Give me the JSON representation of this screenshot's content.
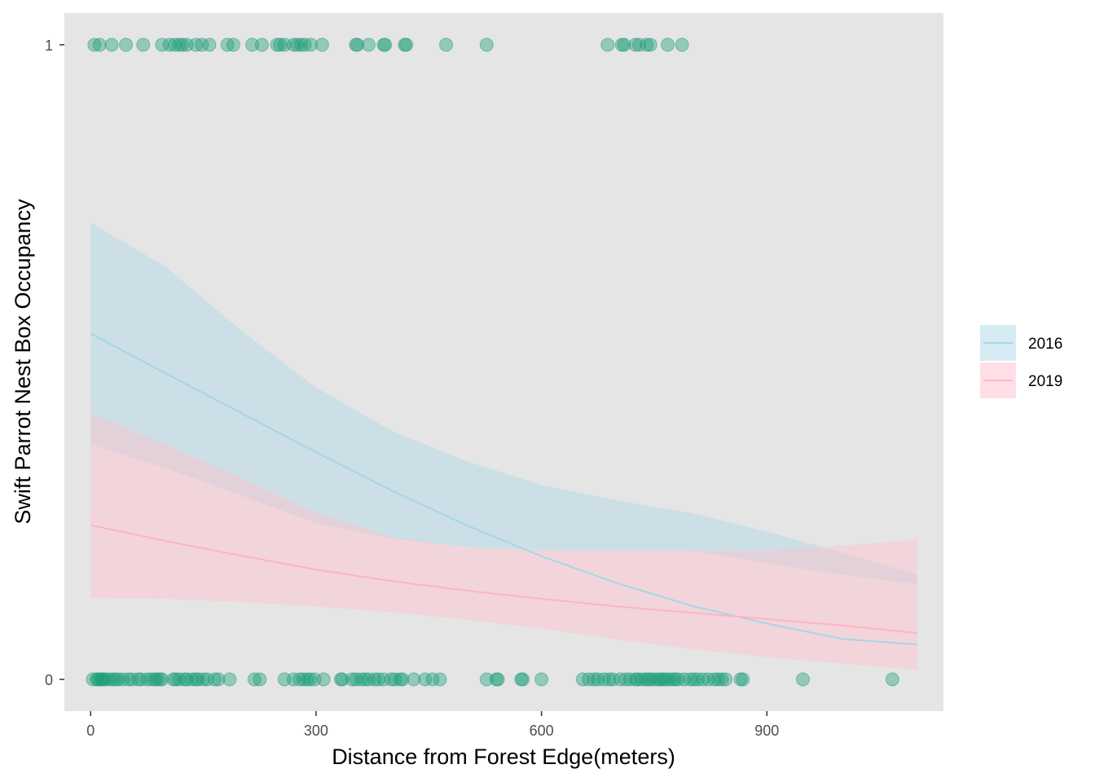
{
  "chart_data": {
    "type": "scatter",
    "title": "",
    "xlabel": "Distance from Forest Edge(meters)",
    "ylabel": "Swift Parrot Nest Box Occupancy",
    "xlim": [
      -35,
      1135
    ],
    "ylim": [
      -0.05,
      1.05
    ],
    "x_ticks": [
      0,
      300,
      600,
      900
    ],
    "y_ticks": [
      0,
      1
    ],
    "grid": false,
    "legend_position": "right",
    "colors": {
      "panel": "#e5e5e5",
      "points": "#1b9e77",
      "2016": "#a6d5e8",
      "2019": "#ffb3c6",
      "ribbon_2016": "#add8e6",
      "ribbon_2019": "#ffc0cb",
      "tick": "#333333"
    },
    "legend": [
      {
        "label": "2016",
        "color": "#a6d5e8"
      },
      {
        "label": "2019",
        "color": "#ffb3c6"
      }
    ],
    "points": {
      "occupied_y": 1,
      "occupied_x": [
        5,
        12,
        28,
        47,
        70,
        95,
        105,
        112,
        118,
        122,
        128,
        140,
        148,
        158,
        182,
        190,
        215,
        228,
        248,
        252,
        258,
        270,
        275,
        280,
        285,
        293,
        308,
        353,
        355,
        370,
        390,
        392,
        418,
        420,
        473,
        527,
        688,
        707,
        710,
        725,
        730,
        740,
        745,
        768,
        787
      ],
      "unoccupied_y": 0,
      "unoccupied_x": [
        3,
        8,
        10,
        13,
        15,
        17,
        20,
        25,
        30,
        33,
        37,
        43,
        50,
        55,
        63,
        67,
        75,
        80,
        85,
        88,
        92,
        95,
        110,
        113,
        118,
        125,
        128,
        135,
        140,
        143,
        150,
        155,
        165,
        170,
        185,
        218,
        225,
        258,
        270,
        278,
        283,
        288,
        292,
        298,
        310,
        333,
        335,
        348,
        353,
        360,
        365,
        370,
        378,
        383,
        390,
        400,
        405,
        412,
        415,
        430,
        445,
        455,
        465,
        527,
        540,
        542,
        573,
        575,
        600,
        655,
        663,
        670,
        675,
        683,
        690,
        695,
        705,
        712,
        718,
        725,
        728,
        733,
        738,
        742,
        745,
        750,
        755,
        758,
        762,
        765,
        770,
        775,
        778,
        782,
        790,
        798,
        803,
        808,
        815,
        822,
        830,
        835,
        840,
        845,
        865,
        868,
        948,
        1067
      ]
    },
    "series": [
      {
        "name": "2016",
        "x": [
          0,
          100,
          200,
          300,
          400,
          500,
          600,
          700,
          800,
          900,
          1000,
          1100
        ],
        "fit": [
          0.545,
          0.482,
          0.42,
          0.358,
          0.298,
          0.243,
          0.194,
          0.152,
          0.116,
          0.088,
          0.064,
          0.055
        ],
        "lower": [
          0.37,
          0.333,
          0.29,
          0.246,
          0.222,
          0.208,
          0.203,
          0.203,
          0.203,
          0.183,
          0.165,
          0.15
        ],
        "upper": [
          0.72,
          0.65,
          0.55,
          0.46,
          0.392,
          0.344,
          0.306,
          0.282,
          0.262,
          0.233,
          0.2,
          0.165
        ]
      },
      {
        "name": "2019",
        "x": [
          0,
          100,
          200,
          300,
          400,
          500,
          600,
          700,
          800,
          900,
          1000,
          1100
        ],
        "fit": [
          0.243,
          0.218,
          0.195,
          0.173,
          0.155,
          0.14,
          0.127,
          0.115,
          0.105,
          0.095,
          0.085,
          0.073
        ],
        "lower": [
          0.128,
          0.127,
          0.122,
          0.115,
          0.106,
          0.094,
          0.08,
          0.063,
          0.048,
          0.035,
          0.025,
          0.015
        ],
        "upper": [
          0.42,
          0.37,
          0.318,
          0.262,
          0.225,
          0.207,
          0.203,
          0.203,
          0.203,
          0.203,
          0.211,
          0.22
        ]
      }
    ]
  }
}
